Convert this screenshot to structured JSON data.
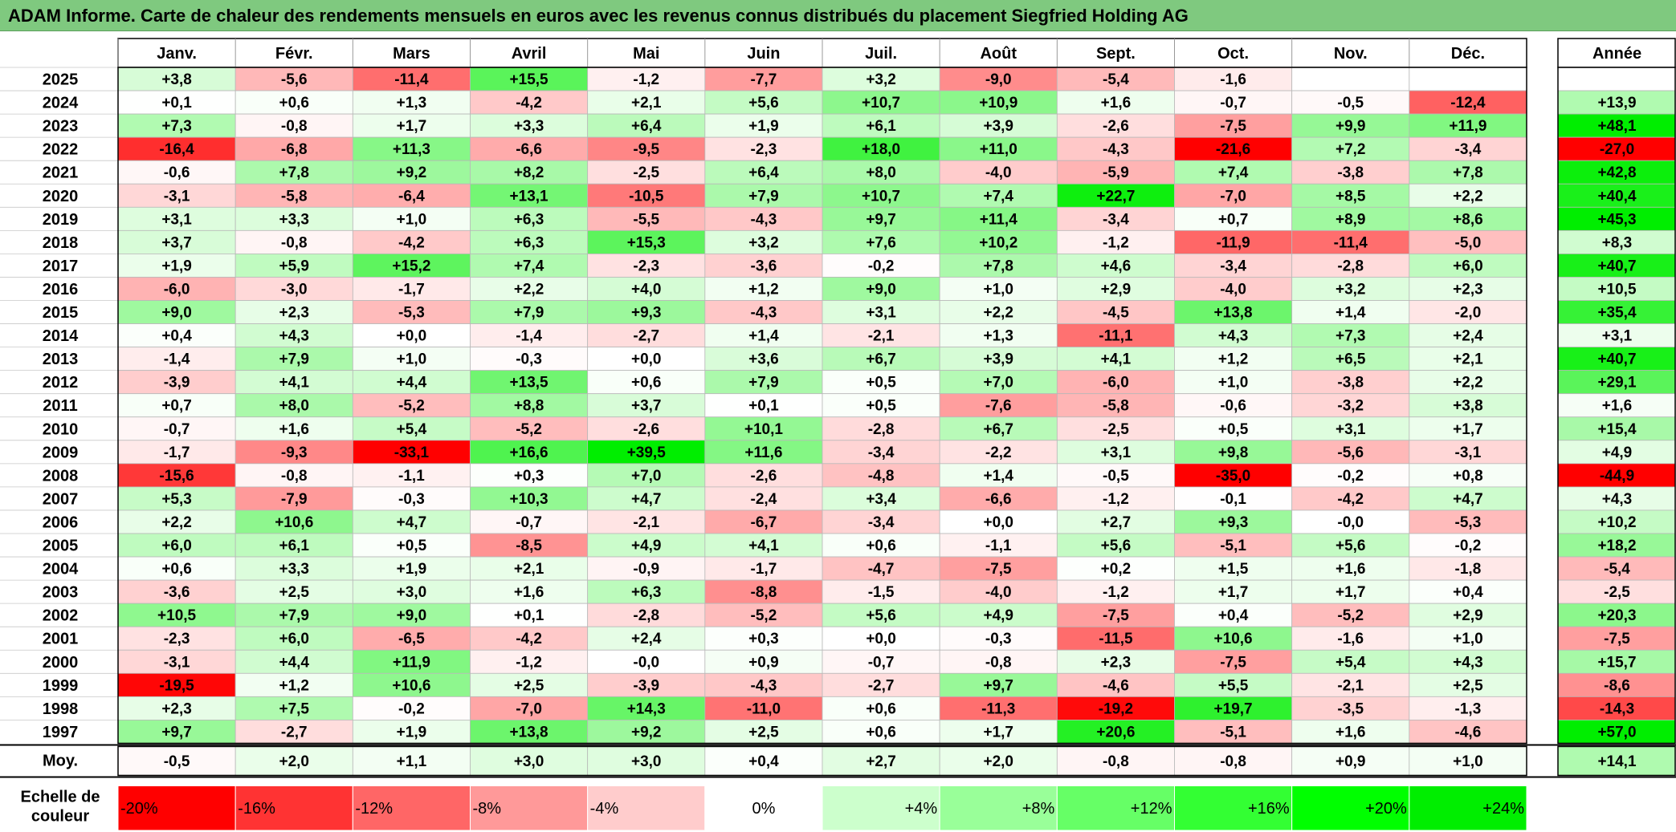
{
  "title": "ADAM Informe. Carte de chaleur des rendements mensuels en euros avec les revenus connus distribués du placement Siegfried Holding AG",
  "chart_data": {
    "type": "heatmap",
    "columns": [
      "Janv.",
      "Févr.",
      "Mars",
      "Avril",
      "Mai",
      "Juin",
      "Juil.",
      "Août",
      "Sept.",
      "Oct.",
      "Nov.",
      "Déc."
    ],
    "year_column_label": "Année",
    "rows": [
      {
        "year": "2025",
        "values": [
          "+3,8",
          "-5,6",
          "-11,4",
          "+15,5",
          "-1,2",
          "-7,7",
          "+3,2",
          "-9,0",
          "-5,4",
          "-1,6",
          "",
          ""
        ],
        "annual": ""
      },
      {
        "year": "2024",
        "values": [
          "+0,1",
          "+0,6",
          "+1,3",
          "-4,2",
          "+2,1",
          "+5,6",
          "+10,7",
          "+10,9",
          "+1,6",
          "-0,7",
          "-0,5",
          "-12,4"
        ],
        "annual": "+13,9"
      },
      {
        "year": "2023",
        "values": [
          "+7,3",
          "-0,8",
          "+1,7",
          "+3,3",
          "+6,4",
          "+1,9",
          "+6,1",
          "+3,9",
          "-2,6",
          "-7,5",
          "+9,9",
          "+11,9"
        ],
        "annual": "+48,1"
      },
      {
        "year": "2022",
        "values": [
          "-16,4",
          "-6,8",
          "+11,3",
          "-6,6",
          "-9,5",
          "-2,3",
          "+18,0",
          "+11,0",
          "-4,3",
          "-21,6",
          "+7,2",
          "-3,4"
        ],
        "annual": "-27,0"
      },
      {
        "year": "2021",
        "values": [
          "-0,6",
          "+7,8",
          "+9,2",
          "+8,2",
          "-2,5",
          "+6,4",
          "+8,0",
          "-4,0",
          "-5,9",
          "+7,4",
          "-3,8",
          "+7,8"
        ],
        "annual": "+42,8"
      },
      {
        "year": "2020",
        "values": [
          "-3,1",
          "-5,8",
          "-6,4",
          "+13,1",
          "-10,5",
          "+7,9",
          "+10,7",
          "+7,4",
          "+22,7",
          "-7,0",
          "+8,5",
          "+2,2"
        ],
        "annual": "+40,4"
      },
      {
        "year": "2019",
        "values": [
          "+3,1",
          "+3,3",
          "+1,0",
          "+6,3",
          "-5,5",
          "-4,3",
          "+9,7",
          "+11,4",
          "-3,4",
          "+0,7",
          "+8,9",
          "+8,6"
        ],
        "annual": "+45,3"
      },
      {
        "year": "2018",
        "values": [
          "+3,7",
          "-0,8",
          "-4,2",
          "+6,3",
          "+15,3",
          "+3,2",
          "+7,6",
          "+10,2",
          "-1,2",
          "-11,9",
          "-11,4",
          "-5,0"
        ],
        "annual": "+8,3"
      },
      {
        "year": "2017",
        "values": [
          "+1,9",
          "+5,9",
          "+15,2",
          "+7,4",
          "-2,3",
          "-3,6",
          "-0,2",
          "+7,8",
          "+4,6",
          "-3,4",
          "-2,8",
          "+6,0"
        ],
        "annual": "+40,7"
      },
      {
        "year": "2016",
        "values": [
          "-6,0",
          "-3,0",
          "-1,7",
          "+2,2",
          "+4,0",
          "+1,2",
          "+9,0",
          "+1,0",
          "+2,9",
          "-4,0",
          "+3,2",
          "+2,3"
        ],
        "annual": "+10,5"
      },
      {
        "year": "2015",
        "values": [
          "+9,0",
          "+2,3",
          "-5,3",
          "+7,9",
          "+9,3",
          "-4,3",
          "+3,1",
          "+2,2",
          "-4,5",
          "+13,8",
          "+1,4",
          "-2,0"
        ],
        "annual": "+35,4"
      },
      {
        "year": "2014",
        "values": [
          "+0,4",
          "+4,3",
          "+0,0",
          "-1,4",
          "-2,7",
          "+1,4",
          "-2,1",
          "+1,3",
          "-11,1",
          "+4,3",
          "+7,3",
          "+2,4"
        ],
        "annual": "+3,1"
      },
      {
        "year": "2013",
        "values": [
          "-1,4",
          "+7,9",
          "+1,0",
          "-0,3",
          "+0,0",
          "+3,6",
          "+6,7",
          "+3,9",
          "+4,1",
          "+1,2",
          "+6,5",
          "+2,1"
        ],
        "annual": "+40,7"
      },
      {
        "year": "2012",
        "values": [
          "-3,9",
          "+4,1",
          "+4,4",
          "+13,5",
          "+0,6",
          "+7,9",
          "+0,5",
          "+7,0",
          "-6,0",
          "+1,0",
          "-3,8",
          "+2,2"
        ],
        "annual": "+29,1"
      },
      {
        "year": "2011",
        "values": [
          "+0,7",
          "+8,0",
          "-5,2",
          "+8,8",
          "+3,7",
          "+0,1",
          "+0,5",
          "-7,6",
          "-5,8",
          "-0,6",
          "-3,2",
          "+3,8"
        ],
        "annual": "+1,6"
      },
      {
        "year": "2010",
        "values": [
          "-0,7",
          "+1,6",
          "+5,4",
          "-5,2",
          "-2,6",
          "+10,1",
          "-2,8",
          "+6,7",
          "-2,5",
          "+0,5",
          "+3,1",
          "+1,7"
        ],
        "annual": "+15,4"
      },
      {
        "year": "2009",
        "values": [
          "-1,7",
          "-9,3",
          "-33,1",
          "+16,6",
          "+39,5",
          "+11,6",
          "-3,4",
          "-2,2",
          "+3,1",
          "+9,8",
          "-5,6",
          "-3,1"
        ],
        "annual": "+4,9"
      },
      {
        "year": "2008",
        "values": [
          "-15,6",
          "-0,8",
          "-1,1",
          "+0,3",
          "+7,0",
          "-2,6",
          "-4,8",
          "+1,4",
          "-0,5",
          "-35,0",
          "-0,2",
          "+0,8"
        ],
        "annual": "-44,9"
      },
      {
        "year": "2007",
        "values": [
          "+5,3",
          "-7,9",
          "-0,3",
          "+10,3",
          "+4,7",
          "-2,4",
          "+3,4",
          "-6,6",
          "-1,2",
          "-0,1",
          "-4,2",
          "+4,7"
        ],
        "annual": "+4,3"
      },
      {
        "year": "2006",
        "values": [
          "+2,2",
          "+10,6",
          "+4,7",
          "-0,7",
          "-2,1",
          "-6,7",
          "-3,4",
          "+0,0",
          "+2,7",
          "+9,3",
          "-0,0",
          "-5,3"
        ],
        "annual": "+10,2"
      },
      {
        "year": "2005",
        "values": [
          "+6,0",
          "+6,1",
          "+0,5",
          "-8,5",
          "+4,9",
          "+4,1",
          "+0,6",
          "-1,1",
          "+5,6",
          "-5,1",
          "+5,6",
          "-0,2"
        ],
        "annual": "+18,2"
      },
      {
        "year": "2004",
        "values": [
          "+0,6",
          "+3,3",
          "+1,9",
          "+2,1",
          "-0,9",
          "-1,7",
          "-4,7",
          "-7,5",
          "+0,2",
          "+1,5",
          "+1,6",
          "-1,8"
        ],
        "annual": "-5,4"
      },
      {
        "year": "2003",
        "values": [
          "-3,6",
          "+2,5",
          "+3,0",
          "+1,6",
          "+6,3",
          "-8,8",
          "-1,5",
          "-4,0",
          "-1,2",
          "+1,7",
          "+1,7",
          "+0,4"
        ],
        "annual": "-2,5"
      },
      {
        "year": "2002",
        "values": [
          "+10,5",
          "+7,9",
          "+9,0",
          "+0,1",
          "-2,8",
          "-5,2",
          "+5,6",
          "+4,9",
          "-7,5",
          "+0,4",
          "-5,2",
          "+2,9"
        ],
        "annual": "+20,3"
      },
      {
        "year": "2001",
        "values": [
          "-2,3",
          "+6,0",
          "-6,5",
          "-4,2",
          "+2,4",
          "+0,3",
          "+0,0",
          "-0,3",
          "-11,5",
          "+10,6",
          "-1,6",
          "+1,0"
        ],
        "annual": "-7,5"
      },
      {
        "year": "2000",
        "values": [
          "-3,1",
          "+4,4",
          "+11,9",
          "-1,2",
          "-0,0",
          "+0,9",
          "-0,7",
          "-0,8",
          "+2,3",
          "-7,5",
          "+5,4",
          "+4,3"
        ],
        "annual": "+15,7"
      },
      {
        "year": "1999",
        "values": [
          "-19,5",
          "+1,2",
          "+10,6",
          "+2,5",
          "-3,9",
          "-4,3",
          "-2,7",
          "+9,7",
          "-4,6",
          "+5,5",
          "-2,1",
          "+2,5"
        ],
        "annual": "-8,6"
      },
      {
        "year": "1998",
        "values": [
          "+2,3",
          "+7,5",
          "-0,2",
          "-7,0",
          "+14,3",
          "-11,0",
          "+0,6",
          "-11,3",
          "-19,2",
          "+19,7",
          "-3,5",
          "-1,3"
        ],
        "annual": "-14,3"
      },
      {
        "year": "1997",
        "values": [
          "+9,7",
          "-2,7",
          "+1,9",
          "+13,8",
          "+9,2",
          "+2,5",
          "+0,6",
          "+1,7",
          "+20,6",
          "-5,1",
          "+1,6",
          "-4,6"
        ],
        "annual": "+57,0"
      }
    ],
    "average": {
      "label": "Moy.",
      "values": [
        "-0,5",
        "+2,0",
        "+1,1",
        "+3,0",
        "+3,0",
        "+0,4",
        "+2,7",
        "+2,0",
        "-0,8",
        "-0,8",
        "+0,9",
        "+1,0"
      ],
      "annual": "+14,1"
    },
    "scale": {
      "label_line1": "Echelle de",
      "label_line2": "couleur",
      "stops": [
        {
          "label": "-20%",
          "color": "#ff0000"
        },
        {
          "label": "-16%",
          "color": "#ff3333"
        },
        {
          "label": "-12%",
          "color": "#ff6666"
        },
        {
          "label": "-8%",
          "color": "#ff9999"
        },
        {
          "label": "-4%",
          "color": "#ffcccc"
        },
        {
          "label": "0%",
          "color": "#ffffff"
        },
        {
          "label": "+4%",
          "color": "#ccffcc"
        },
        {
          "label": "+8%",
          "color": "#99ff99"
        },
        {
          "label": "+12%",
          "color": "#66ff66"
        },
        {
          "label": "+16%",
          "color": "#33ff33"
        },
        {
          "label": "+20%",
          "color": "#00ff00"
        },
        {
          "label": "+24%",
          "color": "#00ee00"
        }
      ]
    }
  }
}
